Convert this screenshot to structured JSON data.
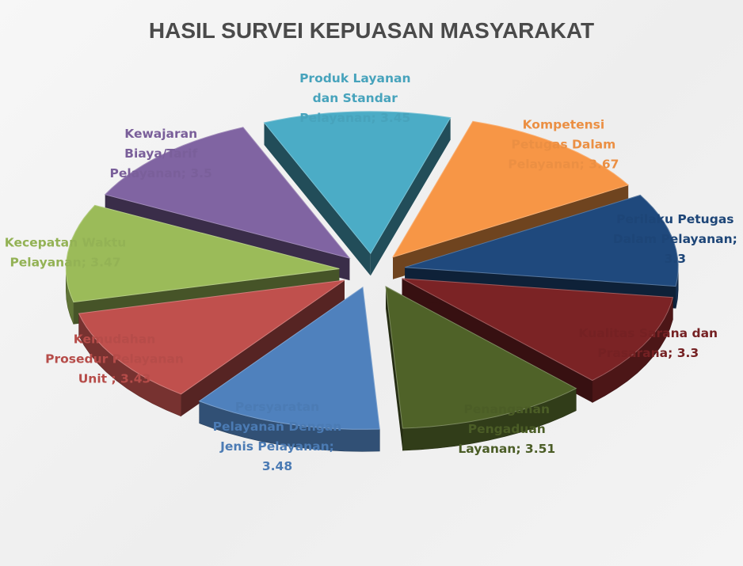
{
  "chart_data": {
    "type": "pie",
    "title": "HASIL SURVEI KEPUASAN MASYARAKAT",
    "legend": "none",
    "exploded": true,
    "three_d": true,
    "slices": [
      {
        "label_lines": [
          "Kompetensi",
          "Petugas Dalam",
          "Pelayanan; 3.67"
        ],
        "category": "Kompetensi Petugas Dalam Pelayanan",
        "value": 3.67,
        "color": "#f79646"
      },
      {
        "label_lines": [
          "Perilaku Petugas",
          "Dalam Pelayanan;",
          "3.3"
        ],
        "category": "Perilaku Petugas Dalam Pelayanan",
        "value": 3.3,
        "color": "#1f497d"
      },
      {
        "label_lines": [
          "Kualitas Sarana dan",
          "Prasarana;  3.3"
        ],
        "category": "Kualitas Sarana dan Prasarana",
        "value": 3.3,
        "color": "#7b2325"
      },
      {
        "label_lines": [
          "Penanganan",
          "Pengaduan",
          "Layanan; 3.51"
        ],
        "category": "Penanganan Pengaduan Layanan",
        "value": 3.51,
        "color": "#4f6228"
      },
      {
        "label_lines": [
          "Persyaratan",
          "Pelayanan Dengan",
          "Jenis Pelayanan;",
          "3.48"
        ],
        "category": "Persyaratan Pelayanan Dengan Jenis Pelayanan",
        "value": 3.48,
        "color": "#4f81bd"
      },
      {
        "label_lines": [
          "Kemudahan",
          "Prosedur Pelayanan",
          "Unit ; 3.43"
        ],
        "category": "Kemudahan Prosedur Pelayanan Unit",
        "value": 3.43,
        "color": "#c0504d"
      },
      {
        "label_lines": [
          "Kecepatan Waktu",
          "Pelayanan; 3.47"
        ],
        "category": "Kecepatan Waktu Pelayanan",
        "value": 3.47,
        "color": "#9bbb59"
      },
      {
        "label_lines": [
          "Kewajaran",
          "Biaya/Tarif",
          "Pelayanan; 3.5"
        ],
        "category": "Kewajaran Biaya/Tarif Pelayanan",
        "value": 3.5,
        "color": "#8064a2"
      },
      {
        "label_lines": [
          "Produk Layanan",
          "dan Standar",
          "Pelayanan; 3.45"
        ],
        "category": "Produk Layanan dan Standar Pelayanan",
        "value": 3.45,
        "color": "#4bacc6"
      }
    ]
  }
}
